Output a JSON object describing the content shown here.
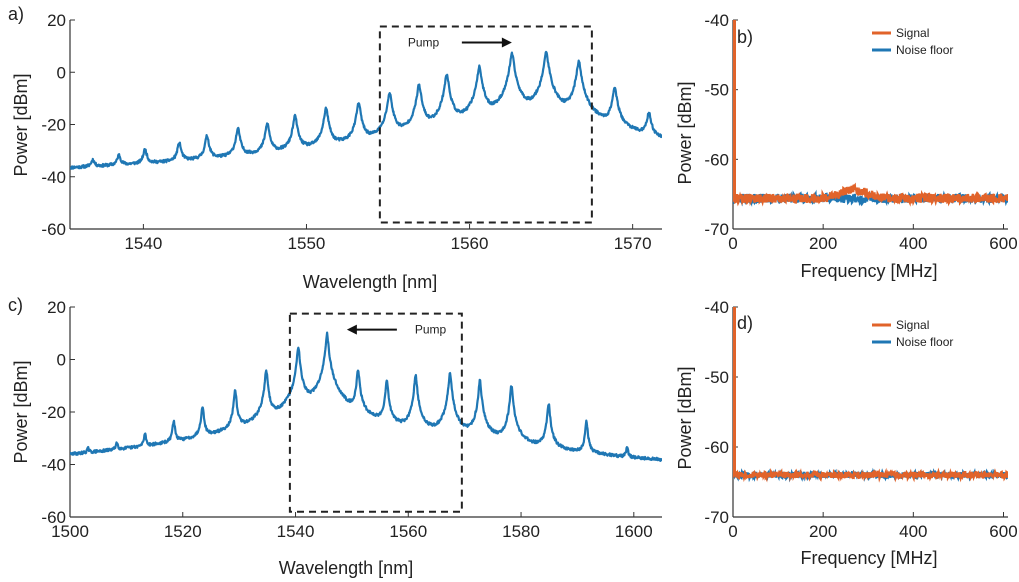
{
  "chart_data": [
    {
      "panel": "a)",
      "type": "line",
      "xlabel": "Wavelength [nm]",
      "ylabel": "Power [dBm]",
      "xlim": [
        1535.5,
        1571.8
      ],
      "ylim": [
        -60,
        20
      ],
      "xticks": [
        1540,
        1550,
        1560,
        1570
      ],
      "yticks": [
        -60,
        -40,
        -20,
        0,
        20
      ],
      "noise_floor_dbm": -55,
      "peak_width_nm": 0.1,
      "series": [
        {
          "color": "#1f77b4",
          "peaks": [
            {
              "x": 1536.9,
              "y": -37
            },
            {
              "x": 1538.5,
              "y": -34
            },
            {
              "x": 1540.1,
              "y": -31
            },
            {
              "x": 1542.2,
              "y": -28
            },
            {
              "x": 1543.9,
              "y": -25
            },
            {
              "x": 1545.8,
              "y": -22
            },
            {
              "x": 1547.6,
              "y": -20
            },
            {
              "x": 1549.3,
              "y": -17
            },
            {
              "x": 1551.2,
              "y": -14
            },
            {
              "x": 1553.2,
              "y": -12
            },
            {
              "x": 1555.1,
              "y": -8
            },
            {
              "x": 1556.9,
              "y": -5
            },
            {
              "x": 1558.6,
              "y": -1
            },
            {
              "x": 1560.6,
              "y": 2
            },
            {
              "x": 1562.6,
              "y": 7
            },
            {
              "x": 1564.7,
              "y": 7.5
            },
            {
              "x": 1566.7,
              "y": 4
            },
            {
              "x": 1568.9,
              "y": -6
            },
            {
              "x": 1571.0,
              "y": -16
            }
          ]
        }
      ],
      "annotation": {
        "text": "Pump",
        "arrow": "right",
        "box": {
          "x": [
            1554.5,
            1567.5
          ],
          "y": [
            -57.5,
            17.5
          ]
        }
      }
    },
    {
      "panel": "b)",
      "type": "line",
      "xlabel": "Frequency [MHz]",
      "ylabel": "Power [dBm]",
      "xlim": [
        0,
        610
      ],
      "ylim": [
        -70,
        -40
      ],
      "xticks": [
        0,
        200,
        400,
        600
      ],
      "yticks": [
        -70,
        -60,
        -50,
        -40
      ],
      "legend": {
        "position": "top-right"
      },
      "series": [
        {
          "name": "Signal",
          "color": "#e1632a",
          "dc_spike_dbm": -40,
          "level_dbm": -65.6,
          "bump": {
            "center": 270,
            "width": 40,
            "height": 1.2
          }
        },
        {
          "name": "Noise floor",
          "color": "#1f77b4",
          "level_dbm": -65.6
        }
      ]
    },
    {
      "panel": "c)",
      "type": "line",
      "xlabel": "Wavelength [nm]",
      "ylabel": "Power [dBm]",
      "xlim": [
        1500,
        1605
      ],
      "ylim": [
        -60,
        20
      ],
      "xticks": [
        1500,
        1520,
        1540,
        1560,
        1580,
        1600
      ],
      "yticks": [
        -60,
        -40,
        -20,
        0,
        20
      ],
      "noise_floor_dbm": -55,
      "peak_width_nm": 0.18,
      "series": [
        {
          "color": "#1f77b4",
          "peaks": [
            {
              "x": 1503.2,
              "y": -39
            },
            {
              "x": 1508.3,
              "y": -35
            },
            {
              "x": 1513.3,
              "y": -30
            },
            {
              "x": 1518.4,
              "y": -24
            },
            {
              "x": 1523.5,
              "y": -18
            },
            {
              "x": 1529.3,
              "y": -12
            },
            {
              "x": 1534.8,
              "y": -4
            },
            {
              "x": 1540.5,
              "y": 5
            },
            {
              "x": 1541.0,
              "y": -48
            },
            {
              "x": 1545.6,
              "y": 10
            },
            {
              "x": 1547.0,
              "y": -50
            },
            {
              "x": 1551.1,
              "y": -4
            },
            {
              "x": 1556.2,
              "y": -8
            },
            {
              "x": 1561.3,
              "y": -6
            },
            {
              "x": 1567.4,
              "y": -5
            },
            {
              "x": 1572.7,
              "y": -8
            },
            {
              "x": 1578.3,
              "y": -10
            },
            {
              "x": 1584.9,
              "y": -17
            },
            {
              "x": 1591.6,
              "y": -24
            },
            {
              "x": 1598.8,
              "y": -36
            }
          ]
        }
      ],
      "annotation": {
        "text": "Pump",
        "arrow": "left",
        "box": {
          "x": [
            1539,
            1569.5
          ],
          "y": [
            -58,
            17.5
          ]
        }
      }
    },
    {
      "panel": "d)",
      "type": "line",
      "xlabel": "Frequency [MHz]",
      "ylabel": "Power [dBm]",
      "xlim": [
        0,
        610
      ],
      "ylim": [
        -70,
        -40
      ],
      "xticks": [
        0,
        200,
        400,
        600
      ],
      "yticks": [
        -70,
        -60,
        -50,
        -40
      ],
      "legend": {
        "position": "top-right"
      },
      "series": [
        {
          "name": "Signal",
          "color": "#e1632a",
          "dc_spike_dbm": -40,
          "level_dbm": -64.0
        },
        {
          "name": "Noise floor",
          "color": "#1f77b4",
          "level_dbm": -64.0
        }
      ]
    }
  ]
}
